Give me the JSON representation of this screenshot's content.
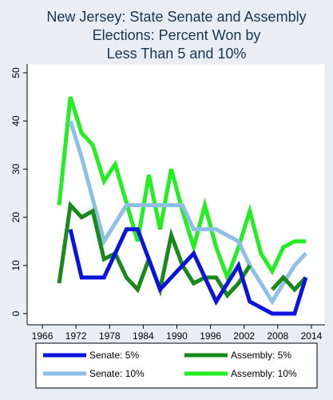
{
  "chart_data": {
    "type": "line",
    "title_lines": [
      "New Jersey: State Senate and Assembly",
      "Elections: Percent Won by",
      "Less Than 5 and 10%"
    ],
    "xlabel": "",
    "ylabel": "",
    "xlim": [
      1964,
      2016
    ],
    "ylim": [
      0,
      50
    ],
    "x_ticks": [
      1966,
      1972,
      1978,
      1984,
      1990,
      1996,
      2002,
      2008,
      2014
    ],
    "y_ticks": [
      0,
      10,
      20,
      30,
      40,
      50
    ],
    "grid": false,
    "legend_position": "bottom",
    "series": [
      {
        "name": "Assembly: 10%",
        "color": "#22ee22",
        "x": [
          1969,
          1971,
          1973,
          1975,
          1977,
          1979,
          1981,
          1983,
          1985,
          1987,
          1989,
          1991,
          1993,
          1995,
          1997,
          1999,
          2001,
          2003,
          2005,
          2007,
          2009,
          2011,
          2013
        ],
        "y": [
          22.5,
          45,
          37.5,
          35,
          27.5,
          31,
          23,
          15,
          28.8,
          17.5,
          30,
          21.3,
          13.8,
          22.5,
          13.8,
          7.5,
          13.8,
          21.3,
          12.5,
          8.8,
          13.8,
          15,
          15
        ]
      },
      {
        "name": "Senate: 10%",
        "color": "#8ebfe6",
        "x": [
          1971,
          1973,
          1977,
          1981,
          1983,
          1987,
          1991,
          1993,
          1997,
          2001,
          2003,
          2007,
          2011,
          2013
        ],
        "y": [
          40,
          32.5,
          15,
          22.5,
          22.5,
          22.5,
          22.5,
          17.5,
          17.5,
          15,
          10,
          2.5,
          10,
          12.5
        ]
      },
      {
        "name": "Assembly: 5%",
        "color": "#198a19",
        "x": [
          1969,
          1971,
          1973,
          1975,
          1977,
          1979,
          1981,
          1983,
          1985,
          1987,
          1989,
          1991,
          1993,
          1995,
          1997,
          1999,
          2001,
          2003,
          2005,
          2007,
          2009,
          2011,
          2013
        ],
        "y": [
          6.3,
          22.5,
          20,
          21.3,
          11.3,
          12.5,
          7.5,
          5,
          11.3,
          5,
          16.3,
          10,
          6.3,
          7.5,
          7.5,
          3.8,
          6.3,
          10,
          null,
          5,
          7.5,
          5,
          7.5
        ]
      },
      {
        "name": "Senate: 5%",
        "color": "#0a14dd",
        "x": [
          1971,
          1973,
          1977,
          1981,
          1983,
          1987,
          1991,
          1993,
          1997,
          2001,
          2003,
          2007,
          2011,
          2013
        ],
        "y": [
          17.5,
          7.5,
          7.5,
          17.5,
          17.5,
          5,
          10,
          12.5,
          2.5,
          10,
          2.5,
          0,
          0,
          7.5
        ]
      }
    ],
    "legend": [
      {
        "label": "Senate: 5%",
        "color": "#0a14dd"
      },
      {
        "label": "Assembly: 5%",
        "color": "#198a19"
      },
      {
        "label": "Senate: 10%",
        "color": "#8ebfe6"
      },
      {
        "label": "Assembly: 10%",
        "color": "#22ee22"
      }
    ]
  }
}
